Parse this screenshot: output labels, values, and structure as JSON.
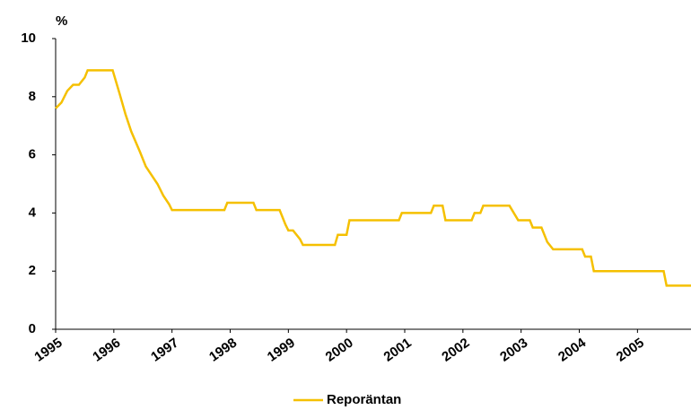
{
  "chart_data": {
    "type": "line",
    "y_label": "%",
    "x": [
      1995.0,
      1995.1,
      1995.2,
      1995.3,
      1995.4,
      1995.5,
      1995.55,
      1995.98,
      1996.1,
      1996.2,
      1996.3,
      1996.45,
      1996.55,
      1996.65,
      1996.75,
      1996.85,
      1996.95,
      1997.0,
      1997.9,
      1997.95,
      1998.4,
      1998.45,
      1998.85,
      1998.95,
      1999.0,
      1999.08,
      1999.2,
      1999.25,
      1999.8,
      1999.85,
      2000.0,
      2000.05,
      2000.9,
      2000.95,
      2001.45,
      2001.5,
      2001.65,
      2001.7,
      2002.15,
      2002.2,
      2002.3,
      2002.35,
      2002.8,
      2002.95,
      2003.15,
      2003.2,
      2003.35,
      2003.45,
      2003.55,
      2004.05,
      2004.1,
      2004.2,
      2004.25,
      2005.45,
      2005.5,
      2005.92
    ],
    "series": [
      {
        "name": "Reporäntan",
        "color": "#f5c000",
        "values": [
          7.6,
          7.8,
          8.2,
          8.41,
          8.41,
          8.66,
          8.91,
          8.91,
          8.1,
          7.4,
          6.8,
          6.1,
          5.6,
          5.3,
          5.0,
          4.6,
          4.3,
          4.1,
          4.1,
          4.35,
          4.35,
          4.1,
          4.1,
          3.6,
          3.4,
          3.4,
          3.1,
          2.9,
          2.9,
          3.25,
          3.25,
          3.75,
          3.75,
          4.0,
          4.0,
          4.25,
          4.25,
          3.75,
          3.75,
          4.0,
          4.0,
          4.25,
          4.25,
          3.75,
          3.75,
          3.5,
          3.5,
          3.0,
          2.75,
          2.75,
          2.5,
          2.5,
          2.0,
          2.0,
          1.5,
          1.5
        ]
      }
    ],
    "xlim": [
      1995,
      2005.92
    ],
    "xticks": [
      1995,
      1996,
      1997,
      1998,
      1999,
      2000,
      2001,
      2002,
      2003,
      2004,
      2005
    ],
    "ylim": [
      0,
      10
    ],
    "yticks": [
      0,
      2,
      4,
      6,
      8,
      10
    ],
    "grid": false,
    "legend": "bottom"
  }
}
